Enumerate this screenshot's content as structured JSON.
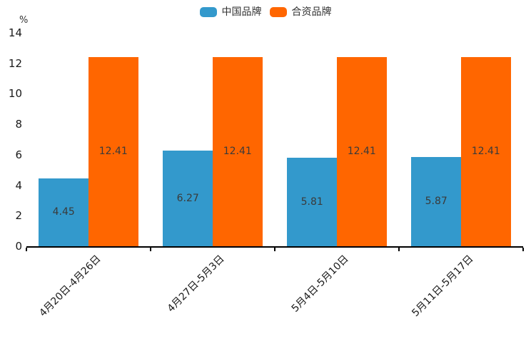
{
  "chart_data": {
    "type": "bar",
    "title": "",
    "unit_label": "%",
    "categories": [
      "4月20日-4月26日",
      "4月27日-5月3日",
      "5月4日-5月10日",
      "5月11日-5月17日"
    ],
    "series": [
      {
        "name": "中国品牌",
        "color": "#3399CC",
        "values": [
          4.45,
          6.27,
          5.81,
          5.87
        ]
      },
      {
        "name": "合资品牌",
        "color": "#FF6600",
        "values": [
          12.41,
          12.41,
          12.41,
          12.41
        ]
      }
    ],
    "value_labels": [
      "4.45",
      "6.27",
      "5.81",
      "5.87",
      "12.41",
      "12.41",
      "12.41",
      "12.41"
    ],
    "ylabel": "",
    "xlabel": "",
    "ylim": [
      0,
      14
    ],
    "yticks": [
      0,
      2,
      4,
      6,
      8,
      10,
      12,
      14
    ],
    "grid": false,
    "legend_position": "top-center",
    "value_label_position": "inside-center",
    "axis_color": "#000000",
    "text_color": "#333333"
  }
}
